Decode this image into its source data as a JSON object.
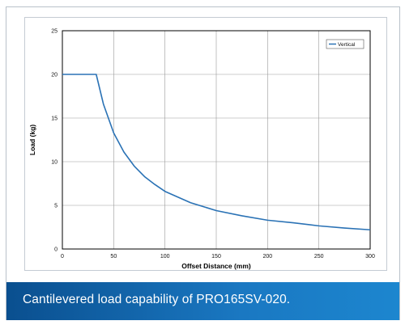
{
  "caption": "Cantilevered load capability of PRO165SV-020.",
  "colors": {
    "series": "#2a72b5",
    "caption_band": "#1a6fb5",
    "grid": "#9a9a9a"
  },
  "chart_data": {
    "type": "line",
    "title": "",
    "xlabel": "Offset Distance (mm)",
    "ylabel": "Load (kg)",
    "xlim": [
      0,
      300
    ],
    "ylim": [
      0,
      25
    ],
    "xticks": [
      0,
      50,
      100,
      150,
      200,
      250,
      300
    ],
    "yticks": [
      0,
      5,
      10,
      15,
      20,
      25
    ],
    "grid": true,
    "legend_position": "top-right",
    "series": [
      {
        "name": "Vertical",
        "x": [
          0,
          10,
          20,
          33,
          40,
          50,
          60,
          70,
          80,
          90,
          100,
          125,
          150,
          175,
          200,
          225,
          250,
          275,
          300
        ],
        "y": [
          20,
          20,
          20,
          20,
          16.6,
          13.3,
          11.1,
          9.5,
          8.3,
          7.4,
          6.6,
          5.3,
          4.4,
          3.8,
          3.3,
          3.0,
          2.65,
          2.4,
          2.2
        ]
      }
    ]
  }
}
